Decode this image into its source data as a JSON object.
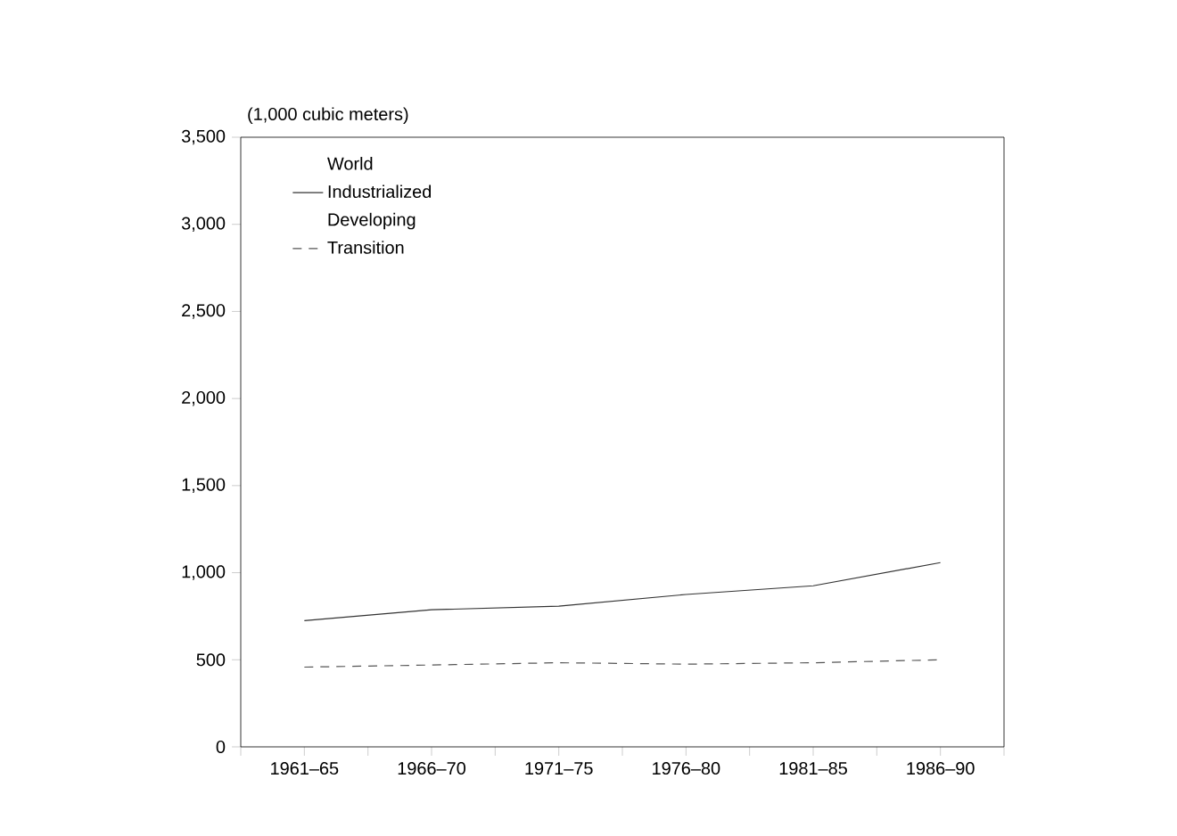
{
  "chart_data": {
    "type": "line",
    "ylabel": "(1,000 cubic meters)",
    "categories": [
      "1961–65",
      "1966–70",
      "1971–75",
      "1976–80",
      "1981–85",
      "1986–90"
    ],
    "series": [
      {
        "name": "World",
        "values": [
          null,
          null,
          null,
          null,
          null,
          null
        ]
      },
      {
        "name": "Industrialized",
        "color": "#333333",
        "line_style": "solid",
        "values": [
          725,
          787,
          808,
          875,
          925,
          1058
        ]
      },
      {
        "name": "Developing",
        "values": [
          null,
          null,
          null,
          null,
          null,
          null
        ]
      },
      {
        "name": "Transition",
        "color": "#555555",
        "line_style": "dashed",
        "values": [
          458,
          470,
          483,
          475,
          483,
          500
        ]
      }
    ],
    "ylim": [
      0,
      3500
    ],
    "yticks": [
      0,
      500,
      {
        "value": 1000,
        "label": "1,000"
      },
      {
        "value": 1500,
        "label": "1,500"
      },
      {
        "value": 2000,
        "label": "2,000"
      },
      {
        "value": 2500,
        "label": "2,500"
      },
      {
        "value": 3000,
        "label": "3,000"
      },
      {
        "value": 3500,
        "label": "3,500"
      }
    ],
    "legend": "top left",
    "grid": false,
    "marker": "none"
  }
}
